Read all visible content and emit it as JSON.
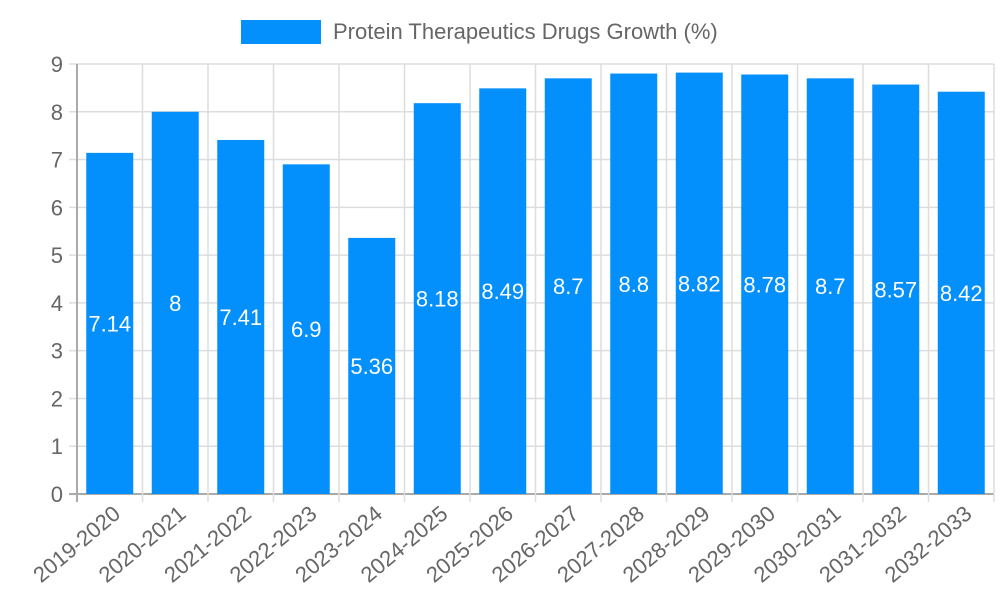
{
  "legend": {
    "label": "Protein Therapeutics Drugs Growth (%)",
    "color": "#038ffc"
  },
  "chart_data": {
    "type": "bar",
    "title": "",
    "xlabel": "",
    "ylabel": "",
    "ylim": [
      0,
      9
    ],
    "yticks": [
      0,
      1,
      2,
      3,
      4,
      5,
      6,
      7,
      8,
      9
    ],
    "grid": true,
    "legend_position": "top",
    "categories": [
      "2019-2020",
      "2020-2021",
      "2021-2022",
      "2022-2023",
      "2023-2024",
      "2024-2025",
      "2025-2026",
      "2026-2027",
      "2027-2028",
      "2028-2029",
      "2029-2030",
      "2030-2031",
      "2031-2032",
      "2032-2033"
    ],
    "series": [
      {
        "name": "Protein Therapeutics Drugs Growth (%)",
        "color": "#038ffc",
        "values": [
          7.14,
          8,
          7.41,
          6.9,
          5.36,
          8.18,
          8.49,
          8.7,
          8.8,
          8.82,
          8.78,
          8.7,
          8.57,
          8.42
        ]
      }
    ]
  }
}
